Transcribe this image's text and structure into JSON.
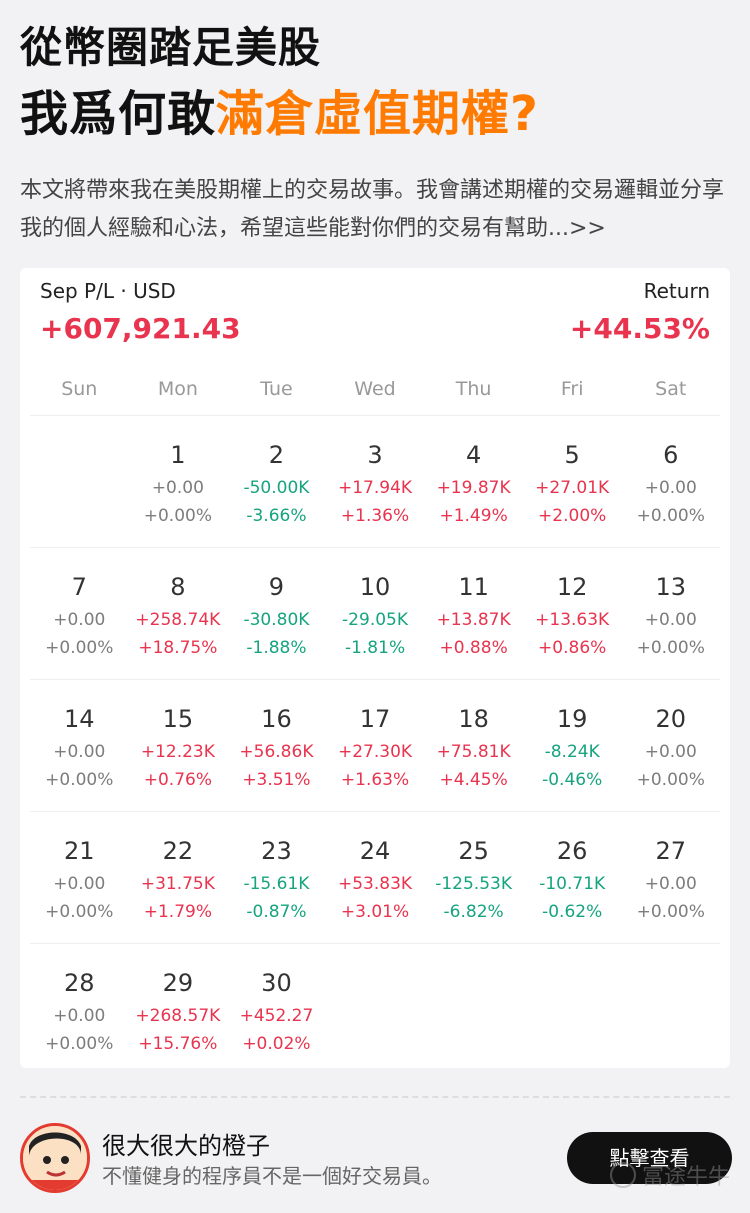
{
  "headline": {
    "line1": "從幣圈踏足美股",
    "line2_prefix": "我爲何敢",
    "line2_highlight": "滿倉虛值期權?"
  },
  "intro": "本文將帶來我在美股期權上的交易故事。我會講述期權的交易邏輯並分享我的個人經驗和心法，希望這些能對你們的交易有幫助...>>",
  "calendar": {
    "pl_label": "Sep P/L · USD",
    "pl_value": "+607,921.43",
    "return_label": "Return",
    "return_value": "+44.53%",
    "weekdays": [
      "Sun",
      "Mon",
      "Tue",
      "Wed",
      "Thu",
      "Fri",
      "Sat"
    ],
    "weeks": [
      [
        null,
        {
          "day": "1",
          "value": "+0.00",
          "pct": "+0.00%",
          "tone": "zero"
        },
        {
          "day": "2",
          "value": "-50.00K",
          "pct": "-3.66%",
          "tone": "neg"
        },
        {
          "day": "3",
          "value": "+17.94K",
          "pct": "+1.36%",
          "tone": "pos"
        },
        {
          "day": "4",
          "value": "+19.87K",
          "pct": "+1.49%",
          "tone": "pos"
        },
        {
          "day": "5",
          "value": "+27.01K",
          "pct": "+2.00%",
          "tone": "pos"
        },
        {
          "day": "6",
          "value": "+0.00",
          "pct": "+0.00%",
          "tone": "zero"
        }
      ],
      [
        {
          "day": "7",
          "value": "+0.00",
          "pct": "+0.00%",
          "tone": "zero"
        },
        {
          "day": "8",
          "value": "+258.74K",
          "pct": "+18.75%",
          "tone": "pos"
        },
        {
          "day": "9",
          "value": "-30.80K",
          "pct": "-1.88%",
          "tone": "neg"
        },
        {
          "day": "10",
          "value": "-29.05K",
          "pct": "-1.81%",
          "tone": "neg"
        },
        {
          "day": "11",
          "value": "+13.87K",
          "pct": "+0.88%",
          "tone": "pos"
        },
        {
          "day": "12",
          "value": "+13.63K",
          "pct": "+0.86%",
          "tone": "pos"
        },
        {
          "day": "13",
          "value": "+0.00",
          "pct": "+0.00%",
          "tone": "zero"
        }
      ],
      [
        {
          "day": "14",
          "value": "+0.00",
          "pct": "+0.00%",
          "tone": "zero"
        },
        {
          "day": "15",
          "value": "+12.23K",
          "pct": "+0.76%",
          "tone": "pos"
        },
        {
          "day": "16",
          "value": "+56.86K",
          "pct": "+3.51%",
          "tone": "pos"
        },
        {
          "day": "17",
          "value": "+27.30K",
          "pct": "+1.63%",
          "tone": "pos"
        },
        {
          "day": "18",
          "value": "+75.81K",
          "pct": "+4.45%",
          "tone": "pos"
        },
        {
          "day": "19",
          "value": "-8.24K",
          "pct": "-0.46%",
          "tone": "neg"
        },
        {
          "day": "20",
          "value": "+0.00",
          "pct": "+0.00%",
          "tone": "zero"
        }
      ],
      [
        {
          "day": "21",
          "value": "+0.00",
          "pct": "+0.00%",
          "tone": "zero"
        },
        {
          "day": "22",
          "value": "+31.75K",
          "pct": "+1.79%",
          "tone": "pos"
        },
        {
          "day": "23",
          "value": "-15.61K",
          "pct": "-0.87%",
          "tone": "neg"
        },
        {
          "day": "24",
          "value": "+53.83K",
          "pct": "+3.01%",
          "tone": "pos"
        },
        {
          "day": "25",
          "value": "-125.53K",
          "pct": "-6.82%",
          "tone": "neg"
        },
        {
          "day": "26",
          "value": "-10.71K",
          "pct": "-0.62%",
          "tone": "neg"
        },
        {
          "day": "27",
          "value": "+0.00",
          "pct": "+0.00%",
          "tone": "zero"
        }
      ],
      [
        {
          "day": "28",
          "value": "+0.00",
          "pct": "+0.00%",
          "tone": "zero"
        },
        {
          "day": "29",
          "value": "+268.57K",
          "pct": "+15.76%",
          "tone": "pos"
        },
        {
          "day": "30",
          "value": "+452.27",
          "pct": "+0.02%",
          "tone": "pos"
        },
        null,
        null,
        null,
        null
      ]
    ]
  },
  "author": {
    "name": "很大很大的橙子",
    "bio": "不懂健身的程序員不是一個好交易員。",
    "avatar_icon": "cartoon-avatar-icon",
    "cta_label": "點擊查看"
  },
  "watermark": {
    "text": "富途牛牛",
    "icon": "futu-logo-icon"
  },
  "colors": {
    "highlight": "#ff7a00",
    "positive": "#e8344e",
    "negative": "#16a47f",
    "neutral": "#7d7d7d"
  }
}
